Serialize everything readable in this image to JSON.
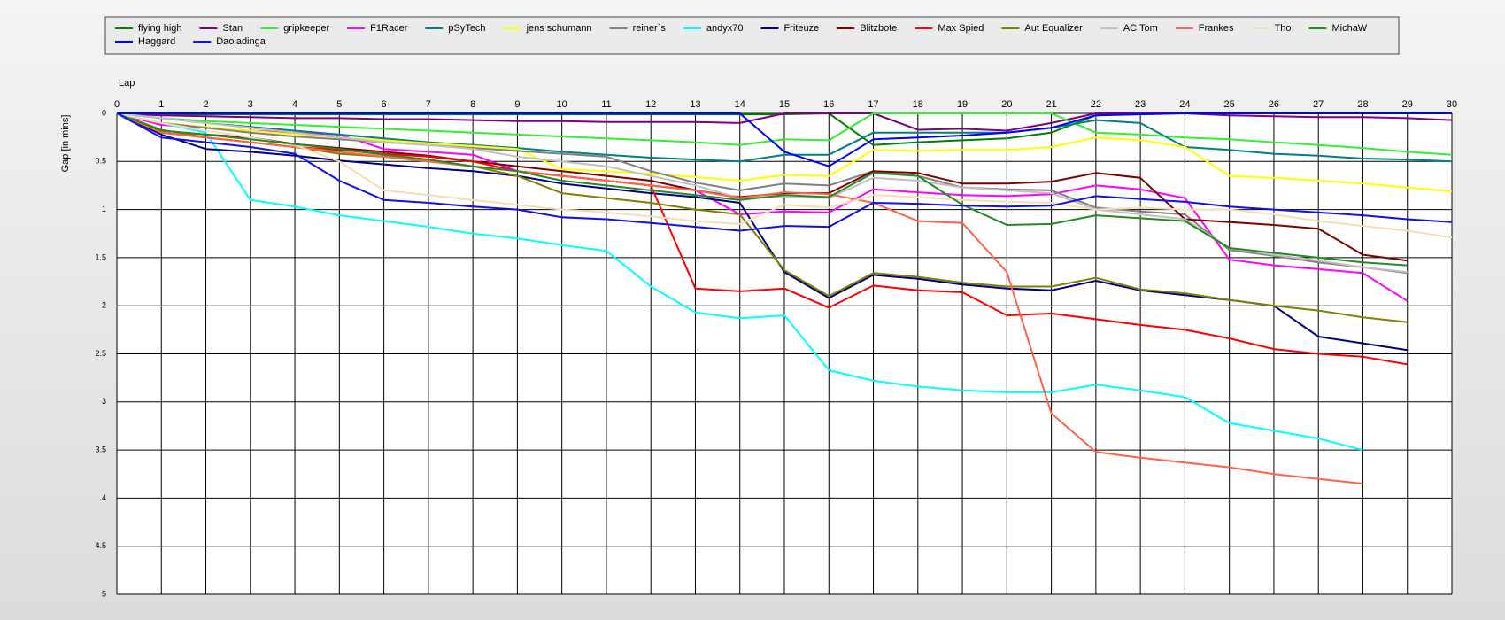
{
  "chart_data": {
    "type": "line",
    "x_label": "Lap",
    "y_label": "Gap [in mins]",
    "x": [
      0,
      1,
      2,
      3,
      4,
      5,
      6,
      7,
      8,
      9,
      10,
      11,
      12,
      13,
      14,
      15,
      16,
      17,
      18,
      19,
      20,
      21,
      22,
      23,
      24,
      25,
      26,
      27,
      28,
      29,
      30
    ],
    "xlim": [
      0,
      30
    ],
    "xticks": [
      0,
      1,
      2,
      3,
      4,
      5,
      6,
      7,
      8,
      9,
      10,
      11,
      12,
      13,
      14,
      15,
      16,
      17,
      18,
      19,
      20,
      21,
      22,
      23,
      24,
      25,
      26,
      27,
      28,
      29,
      30
    ],
    "ylim": [
      0,
      5
    ],
    "yticks": [
      0,
      0.5,
      1,
      1.5,
      2,
      2.5,
      3,
      3.5,
      4,
      4.5,
      5
    ],
    "y_reversed": true,
    "x_axis_position": "top",
    "grid": true,
    "legend": "top",
    "series": [
      {
        "name": "flying high",
        "color": "#008000",
        "values": [
          0,
          0.01,
          0.01,
          0.01,
          0.01,
          0.01,
          0.01,
          0.01,
          0.01,
          0.01,
          0.01,
          0.01,
          0.01,
          0.01,
          0.01,
          0.01,
          0,
          0.33,
          0.3,
          0.28,
          0.26,
          0.2,
          0.02,
          0,
          0,
          0,
          0,
          0,
          0,
          0,
          0
        ]
      },
      {
        "name": "Stan",
        "color": "#800080",
        "values": [
          0,
          0.02,
          0.03,
          0.04,
          0.05,
          0.05,
          0.06,
          0.06,
          0.07,
          0.08,
          0.08,
          0.09,
          0.09,
          0.09,
          0.1,
          0,
          0,
          0,
          0.17,
          0.16,
          0.18,
          0.1,
          0,
          0,
          0,
          0.02,
          0.03,
          0.04,
          0.04,
          0.05,
          0.07
        ]
      },
      {
        "name": "gripkeeper",
        "color": "#33ee33",
        "values": [
          0,
          0.05,
          0.08,
          0.1,
          0.12,
          0.14,
          0.16,
          0.18,
          0.2,
          0.22,
          0.24,
          0.26,
          0.28,
          0.3,
          0.33,
          0.27,
          0.28,
          0,
          0,
          0,
          0,
          0,
          0.2,
          0.22,
          0.25,
          0.27,
          0.3,
          0.33,
          0.36,
          0.4,
          0.43
        ]
      },
      {
        "name": "F1Racer",
        "color": "#ff00ff",
        "values": [
          0,
          0.12,
          0.15,
          0.18,
          0.2,
          0.22,
          0.37,
          0.4,
          0.43,
          0.6,
          0.65,
          0.7,
          0.75,
          0.8,
          1.05,
          1.02,
          1.03,
          0.79,
          0.82,
          0.85,
          0.86,
          0.84,
          0.75,
          0.79,
          0.88,
          1.52,
          1.58,
          1.62,
          1.66,
          1.95,
          null
        ]
      },
      {
        "name": "pSyTech",
        "color": "#008080",
        "values": [
          0,
          0.05,
          0.1,
          0.14,
          0.18,
          0.22,
          0.26,
          0.3,
          0.33,
          0.36,
          0.4,
          0.43,
          0.46,
          0.48,
          0.5,
          0.43,
          0.43,
          0.2,
          0.2,
          0.2,
          0.2,
          0.15,
          0.07,
          0.1,
          0.35,
          0.38,
          0.42,
          0.44,
          0.47,
          0.48,
          0.5
        ]
      },
      {
        "name": "jens  schumann",
        "color": "#ffff00",
        "values": [
          0,
          0.1,
          0.14,
          0.18,
          0.22,
          0.25,
          0.28,
          0.31,
          0.34,
          0.37,
          0.58,
          0.6,
          0.63,
          0.66,
          0.7,
          0.64,
          0.65,
          0.38,
          0.39,
          0.38,
          0.38,
          0.35,
          0.25,
          0.28,
          0.35,
          0.65,
          0.67,
          0.7,
          0.73,
          0.77,
          0.81
        ]
      },
      {
        "name": "reiner`s",
        "color": "#808080",
        "values": [
          0,
          0.1,
          0.15,
          0.2,
          0.24,
          0.27,
          0.3,
          0.33,
          0.36,
          0.39,
          0.42,
          0.45,
          0.6,
          0.72,
          0.8,
          0.73,
          0.75,
          0.6,
          0.65,
          0.77,
          0.79,
          0.8,
          0.98,
          1.02,
          1.05,
          1.42,
          1.48,
          1.55,
          1.6,
          1.66,
          null
        ]
      },
      {
        "name": "andyx70",
        "color": "#00ffff",
        "values": [
          0,
          0.1,
          0.2,
          0.9,
          0.97,
          1.06,
          1.12,
          1.18,
          1.25,
          1.3,
          1.37,
          1.43,
          1.8,
          2.07,
          2.13,
          2.1,
          2.67,
          2.78,
          2.84,
          2.88,
          2.9,
          2.9,
          2.82,
          2.88,
          2.95,
          3.22,
          3.3,
          3.38,
          3.5,
          null,
          null
        ]
      },
      {
        "name": "Friteuze",
        "color": "#000080",
        "values": [
          0,
          0.22,
          0.37,
          0.4,
          0.44,
          0.49,
          0.53,
          0.57,
          0.6,
          0.65,
          0.73,
          0.78,
          0.83,
          0.87,
          0.93,
          1.65,
          1.92,
          1.68,
          1.72,
          1.78,
          1.82,
          1.84,
          1.74,
          1.84,
          1.89,
          1.94,
          2.0,
          2.32,
          2.39,
          2.46,
          null
        ]
      },
      {
        "name": "Blitzbote",
        "color": "#800000",
        "values": [
          0,
          0.18,
          0.22,
          0.25,
          0.32,
          0.36,
          0.4,
          0.44,
          0.5,
          0.55,
          0.6,
          0.65,
          0.7,
          0.8,
          0.87,
          0.83,
          0.83,
          0.6,
          0.62,
          0.73,
          0.73,
          0.71,
          0.62,
          0.67,
          1.1,
          1.13,
          1.16,
          1.2,
          1.47,
          1.53,
          null
        ]
      },
      {
        "name": "Max Spied",
        "color": "#ff0000",
        "values": [
          0,
          0.2,
          0.25,
          0.3,
          0.35,
          0.38,
          0.42,
          0.45,
          0.5,
          0.6,
          0.65,
          0.7,
          0.75,
          1.82,
          1.85,
          1.82,
          2.02,
          1.79,
          1.84,
          1.86,
          2.1,
          2.08,
          2.14,
          2.2,
          2.25,
          2.34,
          2.45,
          2.5,
          2.53,
          2.61,
          null
        ]
      },
      {
        "name": "Aut Equalizer",
        "color": "#808000",
        "values": [
          0,
          0.17,
          0.25,
          0.3,
          0.35,
          0.42,
          0.45,
          0.5,
          0.55,
          0.65,
          0.83,
          0.88,
          0.93,
          1.0,
          1.05,
          1.63,
          1.9,
          1.66,
          1.7,
          1.76,
          1.8,
          1.8,
          1.71,
          1.83,
          1.87,
          1.94,
          2.0,
          2.05,
          2.12,
          2.17,
          null
        ]
      },
      {
        "name": "AC Tom",
        "color": "#c0c0c0",
        "values": [
          0,
          0.05,
          0.1,
          0.15,
          0.2,
          0.25,
          0.3,
          0.33,
          0.37,
          0.45,
          0.5,
          0.55,
          0.65,
          0.75,
          0.88,
          0.87,
          0.88,
          0.67,
          0.7,
          0.77,
          0.8,
          0.83,
          1.0,
          1.05,
          1.1,
          1.4,
          1.47,
          1.53,
          1.6,
          1.65,
          null
        ]
      },
      {
        "name": "Frankes",
        "color": "#ff6347",
        "values": [
          0,
          0.2,
          0.25,
          0.3,
          0.35,
          0.4,
          0.45,
          0.5,
          0.55,
          0.6,
          0.65,
          0.7,
          0.75,
          0.8,
          0.88,
          0.82,
          0.84,
          0.93,
          1.12,
          1.14,
          1.65,
          3.12,
          3.52,
          3.58,
          3.63,
          3.68,
          3.75,
          3.8,
          3.85,
          null,
          null
        ]
      },
      {
        "name": "Tho",
        "color": "#f5deb3",
        "values": [
          0,
          0.1,
          0.18,
          0.25,
          0.33,
          0.5,
          0.8,
          0.85,
          0.9,
          0.95,
          1.0,
          1.03,
          1.07,
          1.12,
          1.15,
          0.95,
          0.98,
          0.85,
          0.87,
          0.9,
          0.92,
          0.93,
          1.0,
          0.98,
          1.0,
          1.0,
          1.05,
          1.12,
          1.17,
          1.22,
          1.29
        ]
      },
      {
        "name": "MichaW",
        "color": "#228b22",
        "values": [
          0,
          0.18,
          0.22,
          0.27,
          0.32,
          0.37,
          0.43,
          0.48,
          0.55,
          0.6,
          0.7,
          0.75,
          0.8,
          0.85,
          0.9,
          0.85,
          0.87,
          0.62,
          0.65,
          0.95,
          1.16,
          1.15,
          1.06,
          1.09,
          1.12,
          1.4,
          1.45,
          1.5,
          1.55,
          1.58,
          null
        ]
      },
      {
        "name": "Haggard",
        "color": "#0000ff",
        "values": [
          0,
          0,
          0,
          0,
          0,
          0,
          0,
          0,
          0,
          0,
          0,
          0,
          0,
          0,
          0,
          0.4,
          0.55,
          0.27,
          0.25,
          0.23,
          0.2,
          0.15,
          0.02,
          0.01,
          0,
          0,
          0,
          0,
          0,
          0,
          0
        ]
      },
      {
        "name": "Daoiadinga",
        "color": "#1010ee",
        "values": [
          0,
          0.25,
          0.3,
          0.35,
          0.42,
          0.7,
          0.9,
          0.93,
          0.97,
          1.0,
          1.08,
          1.1,
          1.14,
          1.18,
          1.22,
          1.17,
          1.18,
          0.93,
          0.94,
          0.96,
          0.97,
          0.96,
          0.86,
          0.89,
          0.92,
          0.97,
          1.0,
          1.03,
          1.06,
          1.1,
          1.13
        ]
      }
    ]
  }
}
